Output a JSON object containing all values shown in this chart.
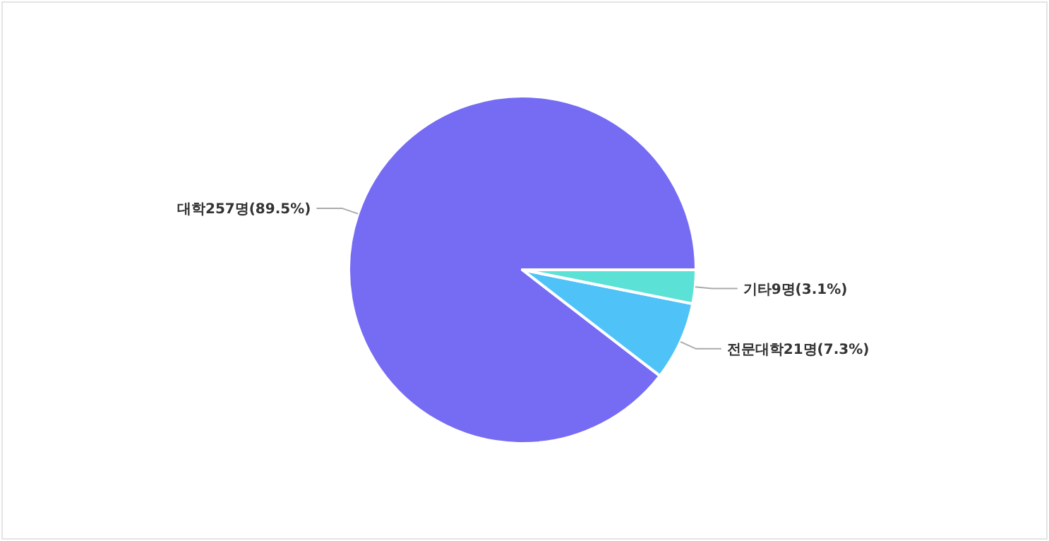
{
  "chart_data": {
    "type": "pie",
    "categories": [
      "대학",
      "전문대학",
      "기타"
    ],
    "values": [
      257,
      21,
      9
    ],
    "value_labels": [
      "257명(89.5%)",
      "21명(7.3%)",
      "9명(3.1%)"
    ],
    "colors": [
      "#766cf4",
      "#4fc3f7",
      "#5ce1d6"
    ]
  }
}
